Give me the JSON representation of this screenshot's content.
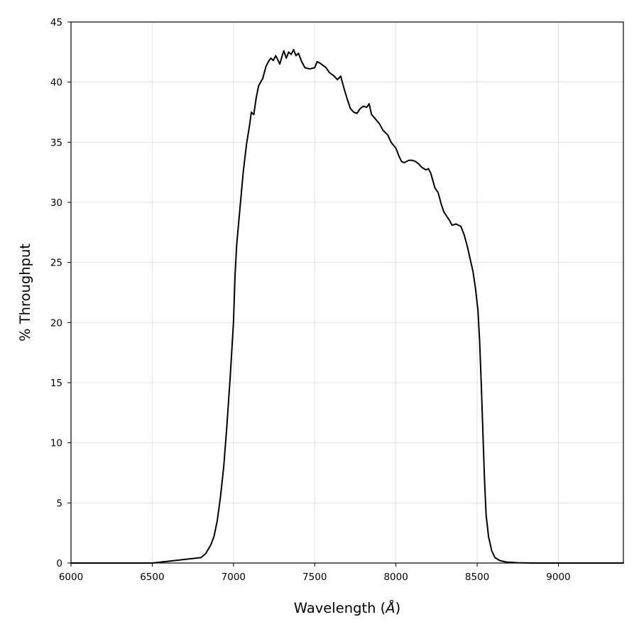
{
  "chart_data": {
    "type": "line",
    "title": "",
    "xlabel": "Wavelength (",
    "xlabel_unit": "Å",
    "xlabel_close": ")",
    "ylabel": "% Throughput",
    "xlim": [
      6000,
      9400
    ],
    "ylim": [
      0,
      45
    ],
    "x_ticks": [
      6000,
      6500,
      7000,
      7500,
      8000,
      8500,
      9000
    ],
    "y_ticks": [
      0,
      5,
      10,
      15,
      20,
      25,
      30,
      35,
      40,
      45
    ],
    "grid": true,
    "line_color": "#000000",
    "series": [
      {
        "points": [
          [
            6000,
            0
          ],
          [
            6500,
            0
          ],
          [
            6600,
            0.15
          ],
          [
            6700,
            0.3
          ],
          [
            6800,
            0.45
          ],
          [
            6830,
            0.8
          ],
          [
            6860,
            1.5
          ],
          [
            6880,
            2.2
          ],
          [
            6900,
            3.5
          ],
          [
            6920,
            5.5
          ],
          [
            6940,
            8
          ],
          [
            6960,
            11.5
          ],
          [
            6980,
            15.5
          ],
          [
            7000,
            20
          ],
          [
            7010,
            24
          ],
          [
            7020,
            26.5
          ],
          [
            7040,
            29.5
          ],
          [
            7060,
            32.5
          ],
          [
            7080,
            34.8
          ],
          [
            7100,
            36.5
          ],
          [
            7110,
            37.5
          ],
          [
            7125,
            37.3
          ],
          [
            7140,
            38.7
          ],
          [
            7155,
            39.7
          ],
          [
            7180,
            40.3
          ],
          [
            7200,
            41.3
          ],
          [
            7215,
            41.7
          ],
          [
            7230,
            42.0
          ],
          [
            7245,
            41.8
          ],
          [
            7260,
            42.2
          ],
          [
            7275,
            41.8
          ],
          [
            7285,
            41.5
          ],
          [
            7300,
            42.2
          ],
          [
            7310,
            42.6
          ],
          [
            7325,
            42.0
          ],
          [
            7340,
            42.5
          ],
          [
            7355,
            42.3
          ],
          [
            7370,
            42.7
          ],
          [
            7385,
            42.2
          ],
          [
            7400,
            42.4
          ],
          [
            7420,
            41.7
          ],
          [
            7440,
            41.2
          ],
          [
            7470,
            41.1
          ],
          [
            7500,
            41.2
          ],
          [
            7515,
            41.7
          ],
          [
            7530,
            41.6
          ],
          [
            7550,
            41.4
          ],
          [
            7570,
            41.2
          ],
          [
            7590,
            40.8
          ],
          [
            7620,
            40.5
          ],
          [
            7640,
            40.2
          ],
          [
            7660,
            40.5
          ],
          [
            7680,
            39.5
          ],
          [
            7700,
            38.6
          ],
          [
            7720,
            37.8
          ],
          [
            7740,
            37.5
          ],
          [
            7760,
            37.4
          ],
          [
            7780,
            37.8
          ],
          [
            7800,
            38.0
          ],
          [
            7820,
            37.9
          ],
          [
            7835,
            38.2
          ],
          [
            7850,
            37.3
          ],
          [
            7870,
            37.0
          ],
          [
            7900,
            36.5
          ],
          [
            7920,
            36.0
          ],
          [
            7950,
            35.6
          ],
          [
            7970,
            35.0
          ],
          [
            8000,
            34.5
          ],
          [
            8020,
            33.8
          ],
          [
            8035,
            33.4
          ],
          [
            8050,
            33.3
          ],
          [
            8080,
            33.5
          ],
          [
            8100,
            33.5
          ],
          [
            8120,
            33.4
          ],
          [
            8140,
            33.2
          ],
          [
            8160,
            32.9
          ],
          [
            8185,
            32.7
          ],
          [
            8200,
            32.8
          ],
          [
            8215,
            32.4
          ],
          [
            8240,
            31.2
          ],
          [
            8260,
            30.8
          ],
          [
            8280,
            29.8
          ],
          [
            8295,
            29.2
          ],
          [
            8310,
            28.9
          ],
          [
            8330,
            28.5
          ],
          [
            8345,
            28.1
          ],
          [
            8370,
            28.2
          ],
          [
            8400,
            28.0
          ],
          [
            8420,
            27.3
          ],
          [
            8440,
            26.3
          ],
          [
            8460,
            25.1
          ],
          [
            8475,
            24.2
          ],
          [
            8490,
            22.8
          ],
          [
            8505,
            21.0
          ],
          [
            8515,
            18.5
          ],
          [
            8525,
            15.0
          ],
          [
            8535,
            11.0
          ],
          [
            8545,
            7.0
          ],
          [
            8555,
            4.0
          ],
          [
            8570,
            2.2
          ],
          [
            8590,
            1.0
          ],
          [
            8610,
            0.45
          ],
          [
            8640,
            0.2
          ],
          [
            8680,
            0.08
          ],
          [
            8750,
            0.02
          ],
          [
            8850,
            0
          ],
          [
            9400,
            0
          ]
        ]
      }
    ]
  }
}
